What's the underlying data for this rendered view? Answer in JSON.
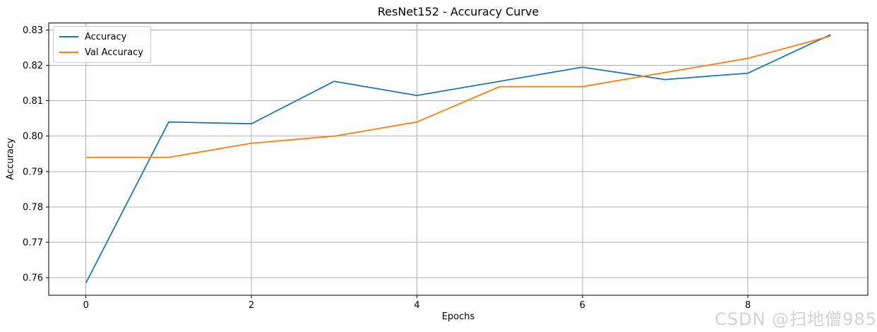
{
  "figure": {
    "watermark": "CSDN @扫地僧985"
  },
  "chart_data": {
    "type": "line",
    "title": "ResNet152 - Accuracy Curve",
    "xlabel": "Epochs",
    "ylabel": "Accuracy",
    "x": [
      0,
      1,
      2,
      3,
      4,
      5,
      6,
      7,
      8,
      9
    ],
    "series": [
      {
        "name": "Accuracy",
        "color": "#1f77b4",
        "values": [
          0.7585,
          0.804,
          0.8035,
          0.8155,
          0.8115,
          0.8155,
          0.8195,
          0.816,
          0.8178,
          0.8287
        ]
      },
      {
        "name": "Val Accuracy",
        "color": "#ff7f0e",
        "values": [
          0.794,
          0.794,
          0.798,
          0.8,
          0.804,
          0.814,
          0.814,
          0.818,
          0.822,
          0.8283
        ]
      }
    ],
    "xlim": [
      -0.45,
      9.45
    ],
    "ylim": [
      0.755,
      0.832
    ],
    "xticks": [
      0,
      2,
      4,
      6,
      8
    ],
    "yticks": [
      0.76,
      0.77,
      0.78,
      0.79,
      0.8,
      0.81,
      0.82,
      0.83
    ],
    "grid": true,
    "legend_position": "upper left",
    "colors": {
      "grid": "#b0b0b0",
      "axis": "#000000",
      "background": "#ffffff",
      "watermark": "#d2d2d2"
    }
  }
}
